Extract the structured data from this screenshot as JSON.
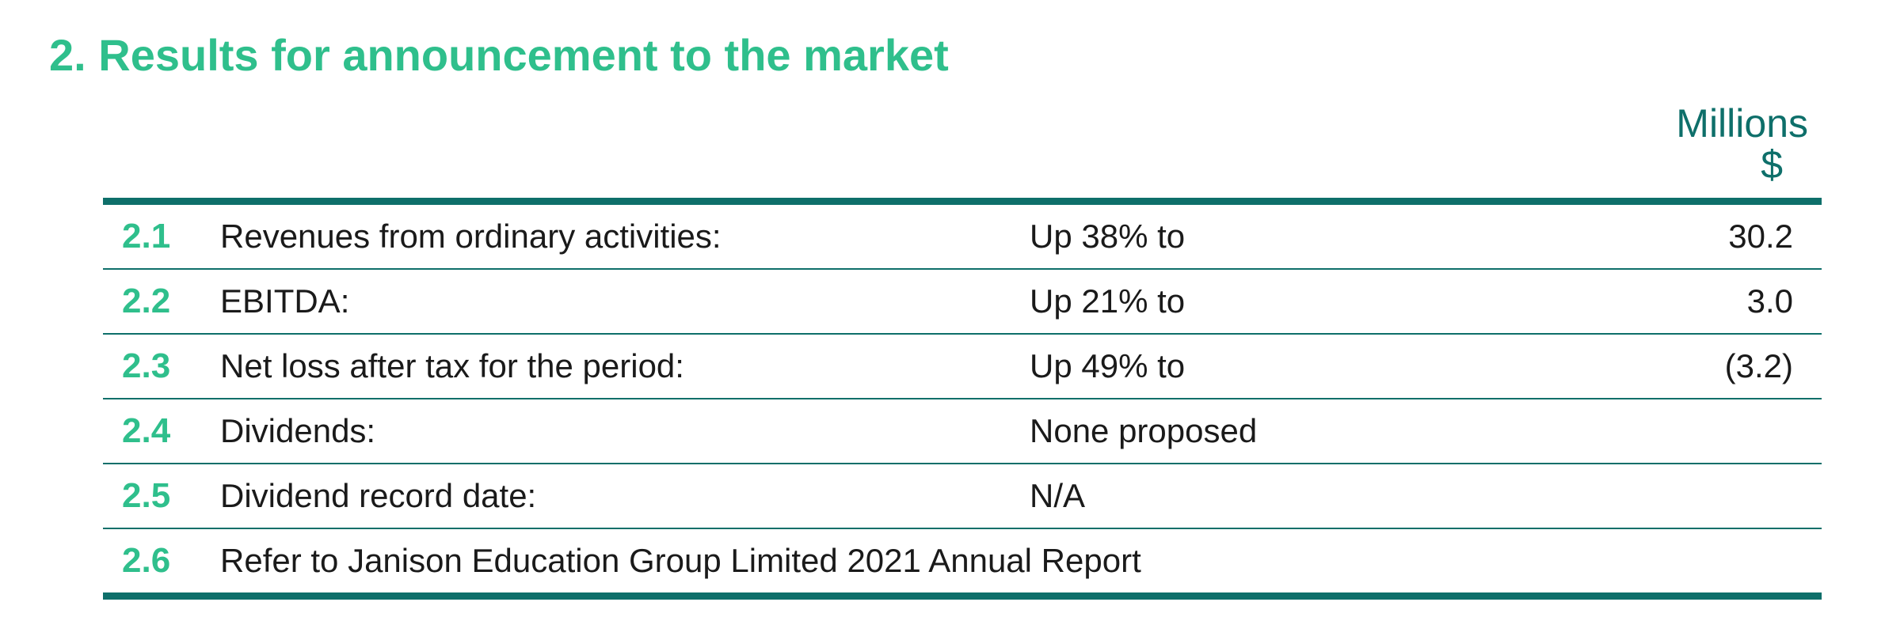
{
  "section": {
    "title": "2. Results for announcement to the market"
  },
  "units": {
    "line1": "Millions",
    "line2": "$"
  },
  "rows": [
    {
      "num": "2.1",
      "desc": "Revenues from ordinary activities:",
      "change": "Up 38% to",
      "amount": "30.2"
    },
    {
      "num": "2.2",
      "desc": "EBITDA:",
      "change": "Up 21% to",
      "amount": "3.0"
    },
    {
      "num": "2.3",
      "desc": "Net loss after tax for the period:",
      "change": "Up 49% to",
      "amount": "(3.2)"
    },
    {
      "num": "2.4",
      "desc": "Dividends:",
      "change": "None proposed",
      "amount": ""
    },
    {
      "num": "2.5",
      "desc": "Dividend record date:",
      "change": "N/A",
      "amount": ""
    },
    {
      "num": "2.6",
      "desc": "Refer to Janison Education Group Limited 2021 Annual Report",
      "change": "",
      "amount": ""
    }
  ]
}
